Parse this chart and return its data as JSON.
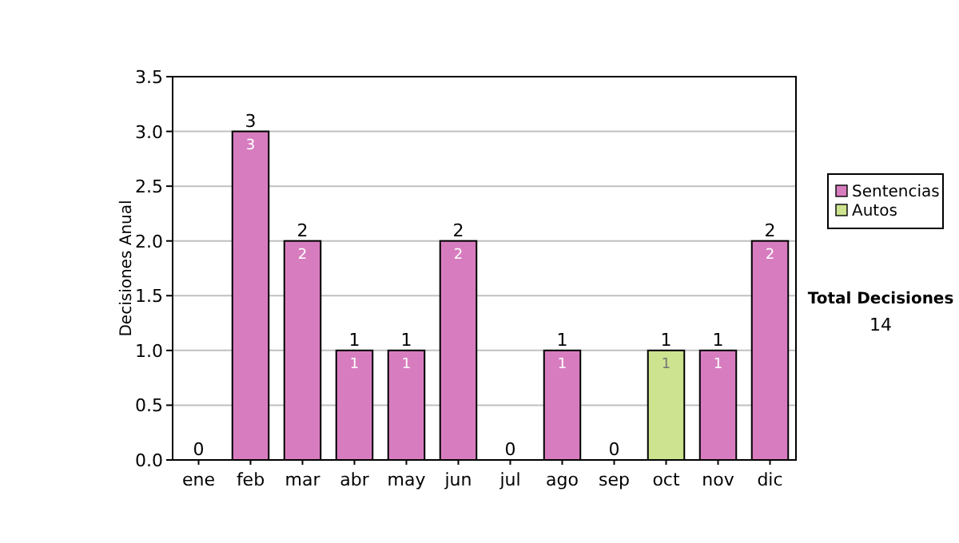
{
  "chart_data": {
    "type": "bar",
    "stacked": true,
    "ylabel": "Decisiones Anual",
    "categories": [
      "ene",
      "feb",
      "mar",
      "abr",
      "may",
      "jun",
      "jul",
      "ago",
      "sep",
      "oct",
      "nov",
      "dic"
    ],
    "series": [
      {
        "name": "Sentencias",
        "color": "#d77dbf",
        "values": [
          0,
          3,
          2,
          1,
          1,
          2,
          0,
          1,
          0,
          0,
          1,
          2
        ],
        "value_labels": [
          null,
          "3",
          "2",
          "1",
          "1",
          "2",
          null,
          "1",
          null,
          null,
          "1",
          "2"
        ]
      },
      {
        "name": "Autos",
        "color": "#cde38f",
        "values": [
          0,
          0,
          0,
          0,
          0,
          0,
          0,
          0,
          0,
          1,
          0,
          0
        ],
        "value_labels": [
          null,
          null,
          null,
          null,
          null,
          null,
          null,
          null,
          null,
          "1",
          null,
          null
        ]
      }
    ],
    "totals": [
      "0",
      "3",
      "2",
      "1",
      "1",
      "2",
      "0",
      "1",
      "0",
      "1",
      "1",
      "2"
    ],
    "ylim": [
      0,
      3.5
    ],
    "yticks": [
      {
        "value": 0,
        "label": "0.0"
      },
      {
        "value": 0.5,
        "label": "0.5"
      },
      {
        "value": 1,
        "label": "1.0"
      },
      {
        "value": 1.5,
        "label": "1.5"
      },
      {
        "value": 2,
        "label": "2.0"
      },
      {
        "value": 2.5,
        "label": "2.5"
      },
      {
        "value": 3,
        "label": "3.0"
      },
      {
        "value": 3.5,
        "label": "3.5"
      }
    ],
    "grid": "y",
    "legend": "right",
    "annotations": [
      "Total Decisiones",
      "14"
    ]
  }
}
